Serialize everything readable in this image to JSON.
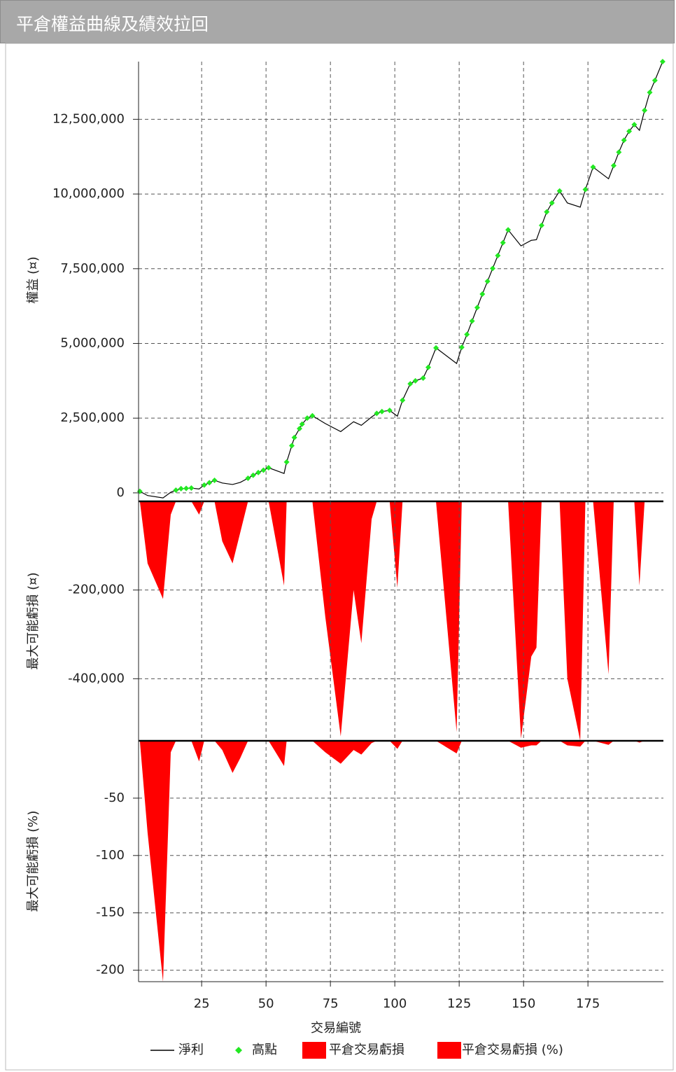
{
  "title": "平倉權益曲線及績效拉回",
  "chart_data": [
    {
      "type": "line",
      "ylabel": "權益 (¤)",
      "xlim": [
        0.5,
        204.3
      ],
      "ylim": [
        -190000,
        14430000
      ],
      "grid": true,
      "yticks": [
        0,
        {
          "value": 2500000,
          "label": "2,500,000"
        },
        {
          "value": 5000000,
          "label": "5,000,000"
        },
        {
          "value": 7500000,
          "label": "7,500,000"
        },
        {
          "value": 10000000,
          "label": "10,000,000"
        },
        {
          "value": 12500000,
          "label": "12,500,000"
        }
      ],
      "series": [
        {
          "name": "淨利",
          "color": "#000000",
          "x": [
            1,
            4,
            10,
            13,
            15,
            17,
            19,
            21,
            24,
            26,
            28,
            30,
            33,
            37,
            40,
            43,
            45,
            47,
            49,
            51,
            57,
            58,
            60,
            61,
            63,
            64,
            66,
            68,
            73,
            79,
            84,
            87,
            91,
            93,
            95,
            98,
            101,
            103,
            106,
            108,
            111,
            113,
            116,
            124,
            126,
            128,
            130,
            132,
            134,
            136,
            138,
            140,
            142,
            144,
            149,
            153,
            155,
            157,
            159,
            161,
            164,
            167,
            172,
            174,
            177,
            183,
            185,
            187,
            189,
            191,
            193,
            195,
            197,
            199,
            201,
            204
          ],
          "values": [
            50000,
            -90000,
            -170000,
            20000,
            90000,
            140000,
            150000,
            160000,
            130000,
            260000,
            340000,
            420000,
            330000,
            280000,
            350000,
            490000,
            590000,
            680000,
            760000,
            840000,
            650000,
            1030000,
            1580000,
            1850000,
            2150000,
            2300000,
            2500000,
            2580000,
            2320000,
            2050000,
            2380000,
            2260000,
            2540000,
            2660000,
            2720000,
            2760000,
            2565000,
            3100000,
            3650000,
            3750000,
            3840000,
            4200000,
            4850000,
            4330000,
            4870000,
            5300000,
            5750000,
            6200000,
            6650000,
            7080000,
            7510000,
            7940000,
            8370000,
            8800000,
            8265000,
            8450000,
            8470000,
            8950000,
            9400000,
            9700000,
            10100000,
            9700000,
            9560000,
            10150000,
            10900000,
            10510000,
            10950000,
            11400000,
            11800000,
            12100000,
            12320000,
            12130000,
            12800000,
            13400000,
            13800000,
            14430000
          ]
        },
        {
          "name": "高點",
          "color": "#22e822",
          "x": [
            1,
            15,
            17,
            19,
            21,
            26,
            28,
            30,
            43,
            45,
            47,
            49,
            51,
            58,
            60,
            61,
            63,
            64,
            66,
            68,
            93,
            95,
            98,
            103,
            106,
            108,
            111,
            113,
            116,
            126,
            128,
            130,
            132,
            134,
            136,
            138,
            140,
            142,
            144,
            157,
            159,
            161,
            164,
            174,
            177,
            185,
            187,
            189,
            191,
            193,
            197,
            199,
            201,
            204
          ],
          "values": [
            50000,
            90000,
            140000,
            150000,
            160000,
            260000,
            340000,
            420000,
            490000,
            590000,
            680000,
            760000,
            840000,
            1030000,
            1580000,
            1850000,
            2150000,
            2300000,
            2500000,
            2580000,
            2660000,
            2720000,
            2760000,
            3100000,
            3650000,
            3750000,
            3840000,
            4200000,
            4850000,
            4870000,
            5300000,
            5750000,
            6200000,
            6650000,
            7080000,
            7510000,
            7940000,
            8370000,
            8800000,
            8950000,
            9400000,
            9700000,
            10100000,
            10150000,
            10900000,
            10950000,
            11400000,
            11800000,
            12100000,
            12320000,
            12800000,
            13400000,
            13800000,
            14430000
          ]
        }
      ]
    },
    {
      "type": "area",
      "ylabel": "最大可能虧損 (¤)",
      "xlim": [
        0.5,
        204.3
      ],
      "ylim": [
        -540000,
        0
      ],
      "grid": true,
      "yticks": [
        {
          "value": -400000,
          "label": "-400,000"
        },
        {
          "value": -200000,
          "label": "-200,000"
        }
      ],
      "series": [
        {
          "name": "平倉交易虧損",
          "color": "#ff0000",
          "x": [
            1,
            4,
            10,
            13,
            15,
            17,
            19,
            21,
            24,
            26,
            28,
            30,
            33,
            37,
            40,
            43,
            45,
            47,
            49,
            51,
            57,
            58,
            60,
            61,
            63,
            64,
            66,
            68,
            73,
            79,
            84,
            87,
            91,
            93,
            95,
            98,
            101,
            103,
            106,
            108,
            111,
            113,
            116,
            124,
            126,
            128,
            130,
            132,
            134,
            136,
            138,
            140,
            142,
            144,
            149,
            153,
            155,
            157,
            159,
            161,
            164,
            167,
            172,
            174,
            177,
            183,
            185,
            187,
            189,
            191,
            193,
            195,
            197,
            199,
            201,
            204
          ],
          "values": [
            0,
            -140000,
            -220000,
            -30000,
            0,
            0,
            0,
            0,
            -30000,
            0,
            0,
            0,
            -90000,
            -140000,
            -70000,
            0,
            0,
            0,
            0,
            0,
            -190000,
            0,
            0,
            0,
            0,
            0,
            0,
            0,
            -260000,
            -530000,
            -200000,
            -320000,
            -40000,
            0,
            0,
            0,
            -195000,
            0,
            0,
            0,
            0,
            0,
            0,
            -520000,
            0,
            0,
            0,
            0,
            0,
            0,
            0,
            0,
            0,
            0,
            -535000,
            -350000,
            -330000,
            0,
            0,
            0,
            0,
            -400000,
            -540000,
            0,
            0,
            -390000,
            0,
            0,
            0,
            0,
            0,
            -190000,
            0,
            0,
            0,
            0
          ]
        }
      ]
    },
    {
      "type": "area",
      "ylabel": "最大可能虧損 (%)",
      "xlabel": "交易編號",
      "xlim": [
        0.5,
        204.3
      ],
      "ylim": [
        -210,
        0
      ],
      "grid": true,
      "yticks": [
        -200,
        -150,
        -100,
        -50
      ],
      "xticks": [
        25,
        50,
        75,
        100,
        125,
        150,
        175
      ],
      "series": [
        {
          "name": "平倉交易虧損 (%)",
          "color": "#ff0000",
          "x": [
            1,
            4,
            10,
            13,
            15,
            17,
            19,
            21,
            24,
            26,
            28,
            30,
            33,
            37,
            40,
            43,
            45,
            47,
            49,
            51,
            57,
            58,
            60,
            61,
            63,
            64,
            66,
            68,
            73,
            79,
            84,
            87,
            91,
            93,
            95,
            98,
            101,
            103,
            106,
            108,
            111,
            113,
            116,
            124,
            126,
            128,
            130,
            132,
            134,
            136,
            138,
            140,
            142,
            144,
            149,
            153,
            155,
            157,
            159,
            161,
            164,
            167,
            172,
            174,
            177,
            183,
            185,
            187,
            189,
            191,
            193,
            195,
            197,
            199,
            201,
            204
          ],
          "values": [
            0,
            -80,
            -210,
            -10,
            0,
            0,
            0,
            0,
            -18,
            0,
            0,
            0,
            -8,
            -28,
            -15,
            0,
            0,
            0,
            0,
            0,
            -22,
            0,
            0,
            0,
            0,
            0,
            0,
            0,
            -10,
            -20,
            -8,
            -12,
            -2,
            0,
            0,
            0,
            -7,
            0,
            0,
            0,
            0,
            0,
            0,
            -11,
            0,
            0,
            0,
            0,
            0,
            0,
            0,
            0,
            0,
            0,
            -6,
            -4,
            -4,
            0,
            0,
            0,
            0,
            -4,
            -5,
            0,
            0,
            -3.5,
            0,
            0,
            0,
            0,
            0,
            -1.5,
            0,
            0,
            0,
            0
          ]
        }
      ]
    }
  ]
}
